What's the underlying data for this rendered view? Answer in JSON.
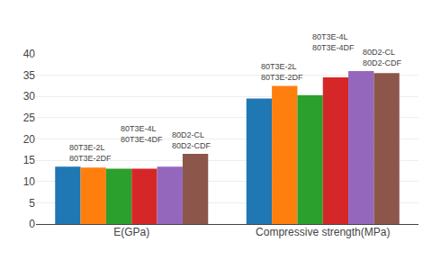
{
  "chart_data": {
    "type": "bar",
    "categories": [
      "E(GPa)",
      "Compressive strength(MPa)"
    ],
    "series": [
      {
        "name": "80T3E-2L",
        "values": [
          13.5,
          29.5
        ]
      },
      {
        "name": "80T3E-2DF",
        "values": [
          13.3,
          32.5
        ]
      },
      {
        "name": "80T3E-4L",
        "values": [
          13.0,
          30.3
        ]
      },
      {
        "name": "80T3E-4DF",
        "values": [
          13.0,
          34.5
        ]
      },
      {
        "name": "80D2-CL",
        "values": [
          13.5,
          36.0
        ]
      },
      {
        "name": "80D2-CDF",
        "values": [
          16.5,
          35.5
        ]
      }
    ],
    "ylim": [
      0,
      40
    ],
    "yticks": [
      0,
      5,
      10,
      15,
      20,
      25,
      30,
      35,
      40
    ],
    "grid": true,
    "legend": "none",
    "annotations": [
      {
        "text": "80T3E-2L",
        "x": "E(GPa)"
      },
      {
        "text": "80T3E-2DF",
        "x": "E(GPa)"
      },
      {
        "text": "80T3E-4L",
        "x": "E(GPa)"
      },
      {
        "text": "80T3E-4DF",
        "x": "E(GPa)"
      },
      {
        "text": "80D2-CL",
        "x": "E(GPa)"
      },
      {
        "text": "80D2-CDF",
        "x": "E(GPa)"
      },
      {
        "text": "80T3E-2L",
        "x": "Compressive strength(MPa)"
      },
      {
        "text": "80T3E-2DF",
        "x": "Compressive strength(MPa)"
      },
      {
        "text": "80T3E-4L",
        "x": "Compressive strength(MPa)"
      },
      {
        "text": "80T3E-4DF",
        "x": "Compressive strength(MPa)"
      },
      {
        "text": "80D2-CL",
        "x": "Compressive strength(MPa)"
      },
      {
        "text": "80D2-CDF",
        "x": "Compressive strength(MPa)"
      }
    ]
  }
}
